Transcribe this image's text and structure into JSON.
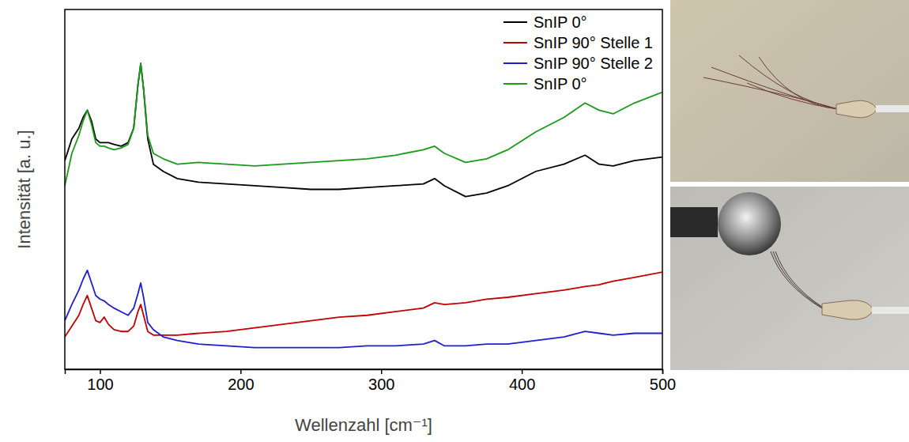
{
  "chart_data": {
    "type": "line",
    "xlabel": "Wellenzahl [cm⁻¹]",
    "ylabel": "Intensität [a. u.]",
    "x": [
      75,
      80,
      85,
      88,
      91,
      94,
      97,
      100,
      103,
      106,
      110,
      115,
      120,
      124,
      127,
      129,
      131,
      134,
      138,
      145,
      155,
      170,
      190,
      210,
      230,
      250,
      270,
      290,
      310,
      330,
      338,
      345,
      360,
      375,
      390,
      410,
      430,
      445,
      455,
      465,
      480,
      500
    ],
    "series": [
      {
        "name": "SnIP 0°",
        "color": "#000000",
        "values": [
          58,
          64,
          67,
          70,
          72,
          69,
          64,
          63,
          63,
          63,
          62.5,
          62,
          63,
          67,
          79,
          85,
          78,
          64,
          57,
          55,
          53,
          52,
          51.5,
          51,
          50.5,
          50,
          50,
          50.5,
          51,
          51.5,
          53,
          51,
          48,
          49,
          51,
          55,
          57,
          59.5,
          57,
          56.5,
          58,
          59
        ]
      },
      {
        "name": "SnIP 90° Stelle 1",
        "color": "#c00000",
        "values": [
          9,
          12,
          15,
          18,
          20.5,
          17,
          13.5,
          13,
          14.5,
          12.5,
          11,
          10.5,
          10.5,
          12,
          16,
          18,
          15,
          10.5,
          9.5,
          9.5,
          9.5,
          10,
          10.5,
          11.5,
          12.5,
          13.5,
          14.5,
          15,
          16,
          17,
          18.5,
          18,
          18.5,
          19.5,
          20,
          21,
          22,
          23,
          23.5,
          24.5,
          25.5,
          27
        ]
      },
      {
        "name": "SnIP 90° Stelle 2",
        "color": "#1f1fd0",
        "values": [
          13.5,
          18,
          22,
          25,
          27.5,
          24,
          20.5,
          19.5,
          19,
          18,
          17,
          16,
          15,
          17,
          21,
          24,
          20,
          13,
          11,
          9,
          8,
          7,
          6.5,
          6,
          6,
          6,
          6,
          6.5,
          6.5,
          7,
          8,
          6.5,
          6.5,
          7,
          7,
          8,
          9,
          10.5,
          10,
          9.5,
          10,
          10
        ]
      },
      {
        "name": "SnIP 0°",
        "color": "#1a9a1a",
        "values": [
          51,
          60,
          65,
          69,
          72,
          68,
          63,
          62,
          62,
          61.5,
          61,
          61.5,
          62.5,
          67,
          79,
          85,
          78,
          65,
          60,
          58.5,
          57,
          57.5,
          57,
          56.5,
          57,
          57.5,
          58,
          58.5,
          59.5,
          61,
          62,
          60,
          57.5,
          58.5,
          61,
          66,
          70,
          74,
          72,
          71,
          74,
          77
        ]
      }
    ],
    "xlim": [
      75,
      500
    ],
    "xticks": [
      100,
      200,
      300,
      400,
      500
    ],
    "ylim": [
      0,
      100
    ],
    "tick_labels": "x",
    "legend": "upper right",
    "grid": false
  }
}
